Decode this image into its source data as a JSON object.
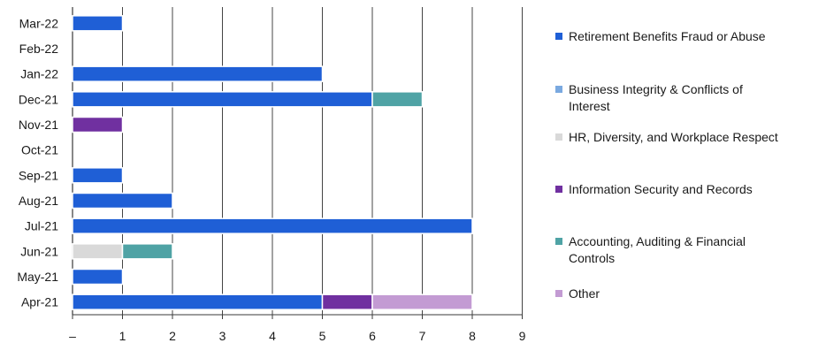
{
  "chart_data": {
    "type": "bar",
    "orientation": "horizontal",
    "stacked": true,
    "categories": [
      "Apr-21",
      "May-21",
      "Jun-21",
      "Jul-21",
      "Aug-21",
      "Sep-21",
      "Oct-21",
      "Nov-21",
      "Dec-21",
      "Jan-22",
      "Feb-22",
      "Mar-22"
    ],
    "series": [
      {
        "name": "Retirement Benefits Fraud or Abuse",
        "color": "#1f5fd6",
        "values": [
          5,
          1,
          0,
          8,
          2,
          1,
          0,
          0,
          6,
          5,
          0,
          1
        ]
      },
      {
        "name": "Business Integrity & Conflicts of Interest",
        "color": "#7aa9e0",
        "values": [
          0,
          0,
          0,
          0,
          0,
          0,
          0,
          0,
          0,
          0,
          0,
          0
        ]
      },
      {
        "name": "HR, Diversity, and Workplace Respect",
        "color": "#d9d9d9",
        "values": [
          0,
          0,
          1,
          0,
          0,
          0,
          0,
          0,
          0,
          0,
          0,
          0
        ]
      },
      {
        "name": "Information Security and Records",
        "color": "#7030a0",
        "values": [
          1,
          0,
          0,
          0,
          0,
          0,
          0,
          1,
          0,
          0,
          0,
          0
        ]
      },
      {
        "name": "Accounting, Auditing & Financial Controls",
        "color": "#4fa3a5",
        "values": [
          0,
          0,
          1,
          0,
          0,
          0,
          0,
          0,
          1,
          0,
          0,
          0
        ]
      },
      {
        "name": "Other",
        "color": "#c39bd3",
        "values": [
          2,
          0,
          0,
          0,
          0,
          0,
          0,
          0,
          0,
          0,
          0,
          0
        ]
      }
    ],
    "xticks": [
      "–",
      "1",
      "2",
      "3",
      "4",
      "5",
      "6",
      "7",
      "8",
      "9"
    ],
    "xlim": [
      0,
      9
    ],
    "grid": "vertical",
    "legend": "right",
    "title": "",
    "xlabel": "",
    "ylabel": ""
  }
}
